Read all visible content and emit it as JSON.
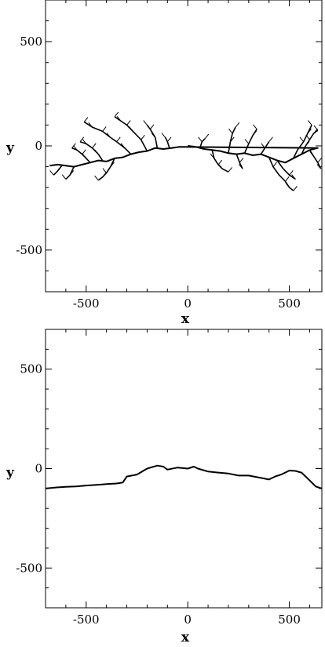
{
  "chart_data": [
    {
      "type": "scatter",
      "title": "",
      "xlabel": "x",
      "ylabel": "y",
      "xlim": [
        -700,
        660
      ],
      "ylim": [
        -700,
        700
      ],
      "xticks": [
        -500,
        0,
        500
      ],
      "yticks": [
        -500,
        0,
        500
      ],
      "grid": false,
      "legend": "none",
      "series": [
        {
          "style": "branching-cluster",
          "color": "#000000",
          "trunk": [
            [
              0,
              0
            ],
            [
              40,
              -5
            ],
            [
              80,
              -15
            ],
            [
              120,
              -20
            ],
            [
              160,
              -25
            ],
            [
              200,
              -35
            ],
            [
              240,
              -40
            ],
            [
              280,
              -35
            ],
            [
              320,
              -45
            ],
            [
              360,
              -40
            ],
            [
              400,
              -55
            ],
            [
              440,
              -70
            ],
            [
              480,
              -80
            ],
            [
              520,
              -60
            ],
            [
              560,
              -40
            ],
            [
              600,
              -20
            ],
            [
              640,
              -10
            ],
            [
              -40,
              -5
            ],
            [
              -80,
              -10
            ],
            [
              -120,
              -15
            ],
            [
              -160,
              -10
            ],
            [
              -200,
              -25
            ],
            [
              -240,
              -30
            ],
            [
              -280,
              -40
            ],
            [
              -320,
              -55
            ],
            [
              -360,
              -60
            ],
            [
              -400,
              -75
            ],
            [
              -440,
              -70
            ],
            [
              -480,
              -80
            ],
            [
              -520,
              -90
            ],
            [
              -560,
              -100
            ],
            [
              -600,
              -95
            ],
            [
              -640,
              -90
            ],
            [
              -680,
              -95
            ]
          ],
          "branches": [
            [
              [
                -150,
                -10
              ],
              [
                -160,
                40
              ],
              [
                -185,
                80
              ],
              [
                -200,
                100
              ]
            ],
            [
              [
                -200,
                -25
              ],
              [
                -230,
                30
              ],
              [
                -270,
                70
              ],
              [
                -300,
                100
              ],
              [
                -330,
                120
              ],
              [
                -360,
                140
              ]
            ],
            [
              [
                -280,
                -40
              ],
              [
                -310,
                -10
              ],
              [
                -350,
                20
              ],
              [
                -380,
                40
              ],
              [
                -420,
                70
              ],
              [
                -470,
                90
              ],
              [
                -510,
                115
              ]
            ],
            [
              [
                -360,
                -60
              ],
              [
                -380,
                -100
              ],
              [
                -400,
                -130
              ],
              [
                -420,
                -150
              ],
              [
                -440,
                -165
              ]
            ],
            [
              [
                -480,
                -80
              ],
              [
                -500,
                -60
              ],
              [
                -520,
                -40
              ],
              [
                -545,
                -20
              ],
              [
                -570,
                -10
              ]
            ],
            [
              [
                -560,
                -100
              ],
              [
                -580,
                -140
              ],
              [
                -600,
                -160
              ]
            ],
            [
              [
                -420,
                -70
              ],
              [
                -440,
                -40
              ],
              [
                -470,
                -10
              ],
              [
                -500,
                10
              ],
              [
                -530,
                20
              ]
            ],
            [
              [
                -620,
                -95
              ],
              [
                -640,
                -120
              ],
              [
                -660,
                -140
              ]
            ],
            [
              [
                120,
                -20
              ],
              [
                130,
                -60
              ],
              [
                150,
                -90
              ],
              [
                170,
                -110
              ],
              [
                200,
                -125
              ]
            ],
            [
              [
                200,
                -35
              ],
              [
                210,
                20
              ],
              [
                220,
                60
              ],
              [
                235,
                90
              ]
            ],
            [
              [
                280,
                -35
              ],
              [
                300,
                10
              ],
              [
                320,
                50
              ],
              [
                340,
                80
              ]
            ],
            [
              [
                400,
                -55
              ],
              [
                420,
                -100
              ],
              [
                450,
                -140
              ],
              [
                480,
                -170
              ],
              [
                500,
                -200
              ],
              [
                520,
                -215
              ]
            ],
            [
              [
                440,
                -70
              ],
              [
                470,
                -110
              ],
              [
                500,
                -140
              ],
              [
                530,
                -160
              ]
            ],
            [
              [
                520,
                -60
              ],
              [
                540,
                -20
              ],
              [
                570,
                20
              ],
              [
                590,
                60
              ],
              [
                610,
                100
              ]
            ],
            [
              [
                600,
                -20
              ],
              [
                620,
                -50
              ],
              [
                640,
                -80
              ],
              [
                655,
                -110
              ]
            ],
            [
              [
                560,
                -40
              ],
              [
                580,
                0
              ],
              [
                600,
                30
              ],
              [
                620,
                60
              ],
              [
                640,
                75
              ]
            ],
            [
              [
                360,
                -40
              ],
              [
                380,
                -10
              ],
              [
                400,
                20
              ]
            ],
            [
              [
                -90,
                -10
              ],
              [
                -100,
                20
              ],
              [
                -110,
                40
              ]
            ],
            [
              [
                60,
                -10
              ],
              [
                70,
                20
              ],
              [
                85,
                35
              ]
            ],
            [
              [
                240,
                -40
              ],
              [
                255,
                -80
              ],
              [
                270,
                -110
              ]
            ]
          ]
        }
      ]
    },
    {
      "type": "line",
      "title": "",
      "xlabel": "x",
      "ylabel": "y",
      "xlim": [
        -700,
        660
      ],
      "ylim": [
        -700,
        700
      ],
      "xticks": [
        -500,
        0,
        500
      ],
      "yticks": [
        -500,
        0,
        500
      ],
      "grid": false,
      "legend": "none",
      "series": [
        {
          "color": "#000000",
          "x": [
            -700,
            -650,
            -600,
            -550,
            -500,
            -450,
            -400,
            -350,
            -320,
            -300,
            -250,
            -200,
            -150,
            -120,
            -100,
            -50,
            0,
            30,
            50,
            100,
            150,
            200,
            250,
            300,
            350,
            400,
            430,
            460,
            500,
            530,
            560,
            580,
            600,
            630,
            660
          ],
          "y": [
            -100,
            -95,
            -92,
            -90,
            -85,
            -82,
            -78,
            -75,
            -70,
            -40,
            -30,
            0,
            15,
            10,
            -5,
            5,
            0,
            10,
            0,
            -15,
            -20,
            -25,
            -35,
            -35,
            -45,
            -55,
            -40,
            -30,
            -10,
            -12,
            -20,
            -40,
            -60,
            -90,
            -100
          ]
        }
      ]
    }
  ]
}
